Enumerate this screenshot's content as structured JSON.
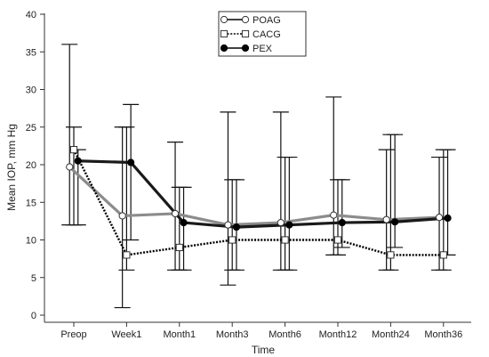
{
  "chart_data": {
    "type": "line",
    "xlabel": "Time",
    "ylabel": "Mean IOP, mm Hg",
    "ylim": [
      0,
      40
    ],
    "yticks": [
      0,
      5,
      10,
      15,
      20,
      25,
      30,
      35,
      40
    ],
    "categories": [
      "Preop",
      "Week1",
      "Month1",
      "Month3",
      "Month6",
      "Month12",
      "Month24",
      "Month36"
    ],
    "legend_position": "top-center",
    "error_bars": true,
    "series": [
      {
        "name": "POAG",
        "marker": "open-circle",
        "line_color": "#8c8c8c",
        "line_style": "solid",
        "x": [
          -0.08,
          0.92,
          1.92,
          2.92,
          3.92,
          4.92,
          5.92,
          6.92
        ],
        "values": [
          19.7,
          13.2,
          13.5,
          12.0,
          12.3,
          13.3,
          12.7,
          13.0
        ],
        "lower": [
          12,
          1,
          6,
          4,
          6,
          8,
          6,
          6
        ],
        "upper": [
          36,
          25,
          23,
          27,
          27,
          29,
          22,
          21
        ]
      },
      {
        "name": "CACG",
        "marker": "open-square",
        "line_color": "#000000",
        "line_style": "dotted",
        "x": [
          0.0,
          1.0,
          2.0,
          3.0,
          4.0,
          5.0,
          6.0,
          7.0
        ],
        "values": [
          22.0,
          8.0,
          9.0,
          10.0,
          10.0,
          10.0,
          8.0,
          8.0
        ],
        "lower": [
          12,
          6,
          6,
          6,
          6,
          8,
          6,
          6
        ],
        "upper": [
          25,
          25,
          17,
          18,
          21,
          18,
          24,
          22
        ]
      },
      {
        "name": "PEX",
        "marker": "filled-circle",
        "line_color": "#1a1a1a",
        "line_style": "solid",
        "x": [
          0.08,
          1.08,
          2.08,
          3.08,
          4.08,
          5.08,
          6.08,
          7.08
        ],
        "values": [
          20.5,
          20.3,
          12.3,
          11.7,
          12.0,
          12.3,
          12.4,
          12.9
        ],
        "lower": [
          12,
          10,
          6,
          6,
          6,
          9,
          9,
          8
        ],
        "upper": [
          22,
          28,
          17,
          18,
          21,
          18,
          24,
          22
        ]
      }
    ]
  }
}
